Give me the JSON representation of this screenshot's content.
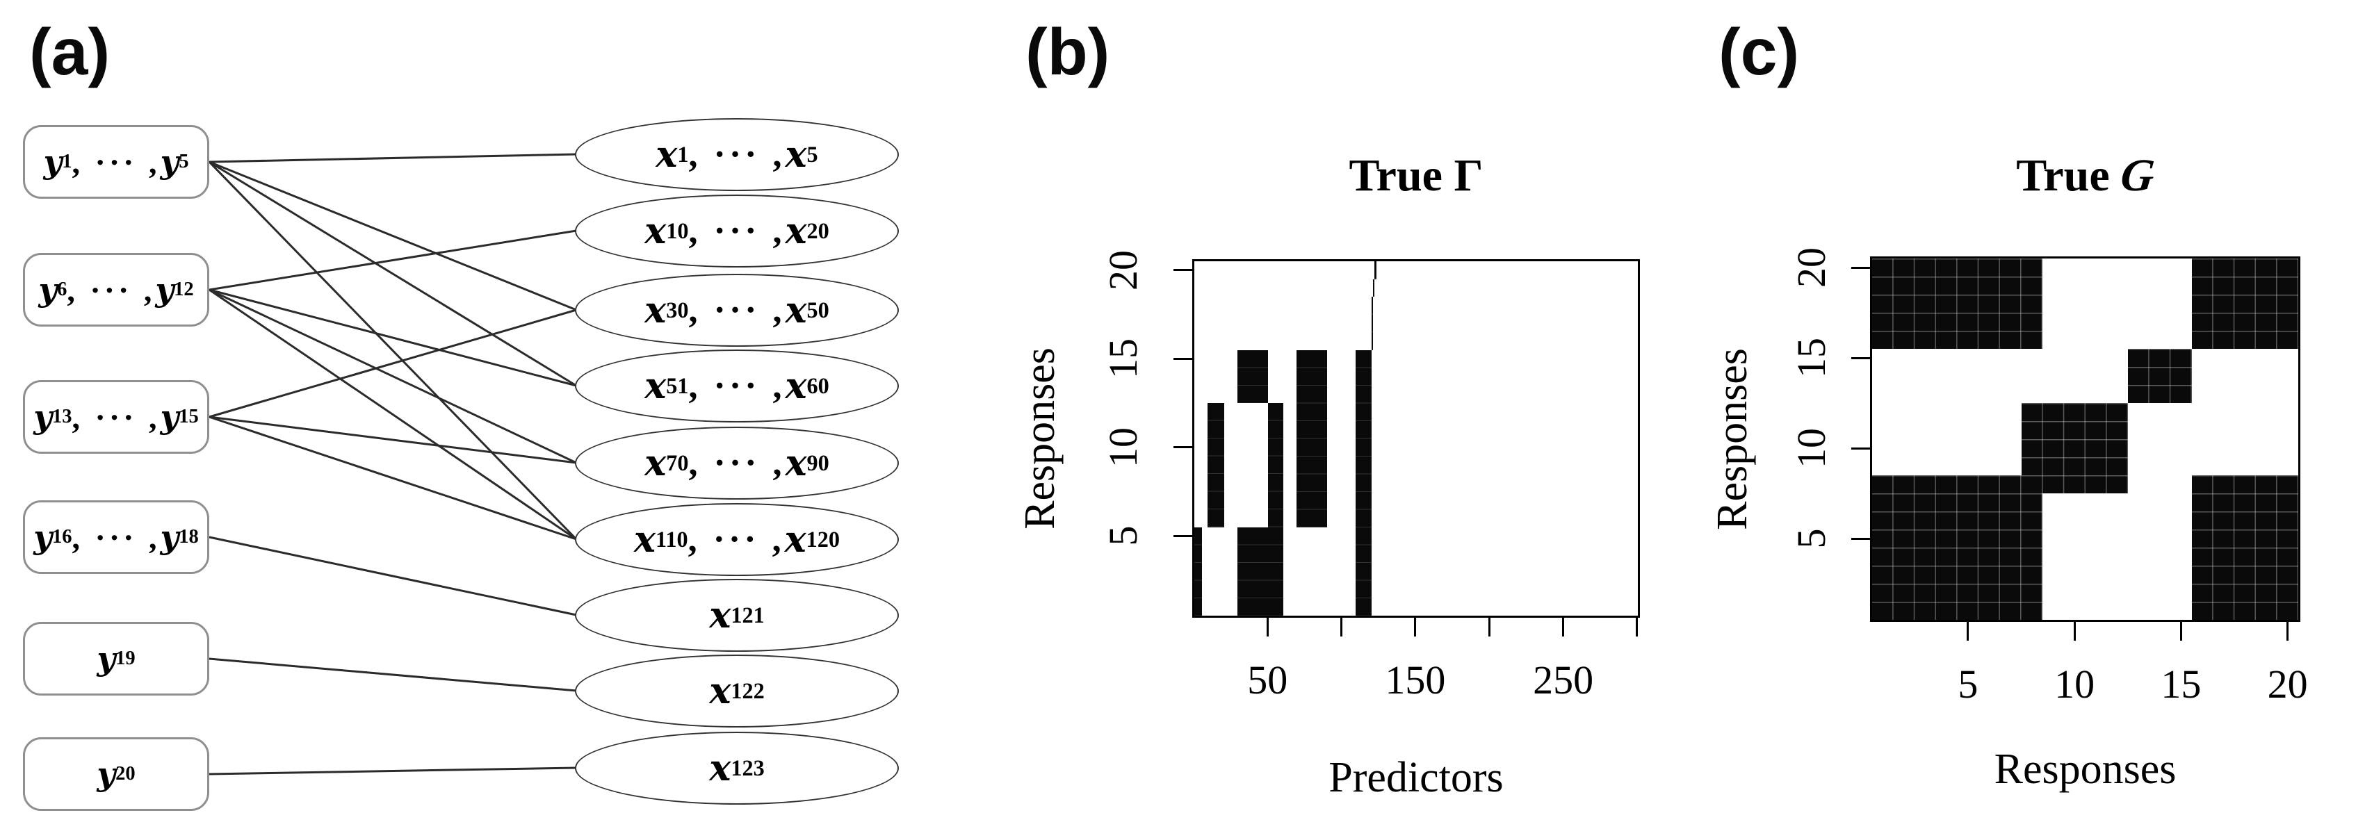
{
  "panels": [
    {
      "label": "(a)"
    },
    {
      "label": "(b)"
    },
    {
      "label": "(c)"
    }
  ],
  "graph": {
    "left_nodes": [
      {
        "id": "y1-5",
        "segments": [
          {
            "v": "y",
            "s": "1"
          },
          {
            "t": ", ··· ,"
          },
          {
            "v": "y",
            "s": "5"
          }
        ]
      },
      {
        "id": "y6-12",
        "segments": [
          {
            "v": "y",
            "s": "6"
          },
          {
            "t": ", ··· ,"
          },
          {
            "v": "y",
            "s": "12"
          }
        ]
      },
      {
        "id": "y13-15",
        "segments": [
          {
            "v": "y",
            "s": "13"
          },
          {
            "t": ", ··· ,"
          },
          {
            "v": "y",
            "s": "15"
          }
        ]
      },
      {
        "id": "y16-18",
        "segments": [
          {
            "v": "y",
            "s": "16"
          },
          {
            "t": ", ··· ,"
          },
          {
            "v": "y",
            "s": "18"
          }
        ]
      },
      {
        "id": "y19",
        "segments": [
          {
            "v": "y",
            "s": "19"
          }
        ]
      },
      {
        "id": "y20",
        "segments": [
          {
            "v": "y",
            "s": "20"
          }
        ]
      }
    ],
    "right_nodes": [
      {
        "id": "x1-5",
        "segments": [
          {
            "v": "x",
            "s": "1"
          },
          {
            "t": ", ··· ,"
          },
          {
            "v": "x",
            "s": "5"
          }
        ]
      },
      {
        "id": "x10-20",
        "segments": [
          {
            "v": "x",
            "s": "10"
          },
          {
            "t": ", ··· ,"
          },
          {
            "v": "x",
            "s": "20"
          }
        ]
      },
      {
        "id": "x30-50",
        "segments": [
          {
            "v": "x",
            "s": "30"
          },
          {
            "t": ", ··· ,"
          },
          {
            "v": "x",
            "s": "50"
          }
        ]
      },
      {
        "id": "x51-60",
        "segments": [
          {
            "v": "x",
            "s": "51"
          },
          {
            "t": ", ··· ,"
          },
          {
            "v": "x",
            "s": "60"
          }
        ]
      },
      {
        "id": "x70-90",
        "segments": [
          {
            "v": "x",
            "s": "70"
          },
          {
            "t": ", ··· ,"
          },
          {
            "v": "x",
            "s": "90"
          }
        ]
      },
      {
        "id": "x110-120",
        "segments": [
          {
            "v": "x",
            "s": "110"
          },
          {
            "t": ", ··· ,"
          },
          {
            "v": "x",
            "s": "120"
          }
        ]
      },
      {
        "id": "x121",
        "segments": [
          {
            "v": "x",
            "s": "121"
          }
        ]
      },
      {
        "id": "x122",
        "segments": [
          {
            "v": "x",
            "s": "122"
          }
        ]
      },
      {
        "id": "x123",
        "segments": [
          {
            "v": "x",
            "s": "123"
          }
        ]
      }
    ],
    "edges": [
      [
        0,
        0
      ],
      [
        0,
        2
      ],
      [
        0,
        3
      ],
      [
        0,
        5
      ],
      [
        1,
        1
      ],
      [
        1,
        3
      ],
      [
        1,
        4
      ],
      [
        1,
        5
      ],
      [
        2,
        2
      ],
      [
        2,
        4
      ],
      [
        2,
        5
      ],
      [
        3,
        6
      ],
      [
        4,
        7
      ],
      [
        5,
        8
      ]
    ]
  },
  "chart_data": [
    {
      "type": "heatmap",
      "panel": "b",
      "title": {
        "prefix": "True ",
        "symbol": "Γ"
      },
      "xlabel": "Predictors",
      "ylabel": "Responses",
      "xlim": [
        0.5,
        300.5
      ],
      "ylim": [
        0.5,
        20.5
      ],
      "legend": "none",
      "colors": {
        "on": "#0a0a0a",
        "off": "#ffffff"
      },
      "xticks": [
        {
          "v": 50,
          "label": "50"
        },
        {
          "v": 100,
          "label": ""
        },
        {
          "v": 150,
          "label": "150"
        },
        {
          "v": 200,
          "label": ""
        },
        {
          "v": 250,
          "label": "250"
        },
        {
          "v": 300,
          "label": ""
        }
      ],
      "yticks": [
        {
          "v": 5,
          "label": "5"
        },
        {
          "v": 10,
          "label": "10"
        },
        {
          "v": 15,
          "label": "15"
        },
        {
          "v": 20,
          "label": "20"
        }
      ],
      "blocks": [
        {
          "x": [
            1,
            5
          ],
          "y": [
            1,
            5
          ]
        },
        {
          "x": [
            10,
            20
          ],
          "y": [
            6,
            12
          ]
        },
        {
          "x": [
            30,
            60
          ],
          "y": [
            1,
            5
          ]
        },
        {
          "x": [
            30,
            50
          ],
          "y": [
            13,
            15
          ]
        },
        {
          "x": [
            51,
            60
          ],
          "y": [
            6,
            12
          ]
        },
        {
          "x": [
            70,
            90
          ],
          "y": [
            6,
            15
          ]
        },
        {
          "x": [
            110,
            120
          ],
          "y": [
            1,
            15
          ]
        },
        {
          "x": [
            121,
            121
          ],
          "y": [
            16,
            18
          ]
        },
        {
          "x": [
            122,
            122
          ],
          "y": [
            19,
            19
          ]
        },
        {
          "x": [
            123,
            123
          ],
          "y": [
            20,
            20
          ]
        }
      ]
    },
    {
      "type": "heatmap",
      "panel": "c",
      "title": {
        "prefix": "True ",
        "symbol": "G"
      },
      "xlabel": "Responses",
      "ylabel": "Responses",
      "xlim": [
        0.5,
        20.5
      ],
      "ylim": [
        0.5,
        20.5
      ],
      "legend": "none",
      "colors": {
        "on": "#0a0a0a",
        "off": "#ffffff"
      },
      "xticks": [
        {
          "v": 5,
          "label": "5"
        },
        {
          "v": 10,
          "label": "10"
        },
        {
          "v": 15,
          "label": "15"
        },
        {
          "v": 20,
          "label": "20"
        }
      ],
      "yticks": [
        {
          "v": 5,
          "label": "5"
        },
        {
          "v": 10,
          "label": "10"
        },
        {
          "v": 15,
          "label": "15"
        },
        {
          "v": 20,
          "label": "20"
        }
      ],
      "blocks": [
        {
          "x": [
            1,
            8
          ],
          "y": [
            1,
            8
          ]
        },
        {
          "x": [
            8,
            12
          ],
          "y": [
            8,
            12
          ]
        },
        {
          "x": [
            13,
            15
          ],
          "y": [
            13,
            15
          ]
        },
        {
          "x": [
            16,
            20
          ],
          "y": [
            16,
            20
          ]
        },
        {
          "x": [
            16,
            20
          ],
          "y": [
            1,
            8
          ]
        },
        {
          "x": [
            1,
            8
          ],
          "y": [
            16,
            20
          ]
        }
      ]
    }
  ]
}
